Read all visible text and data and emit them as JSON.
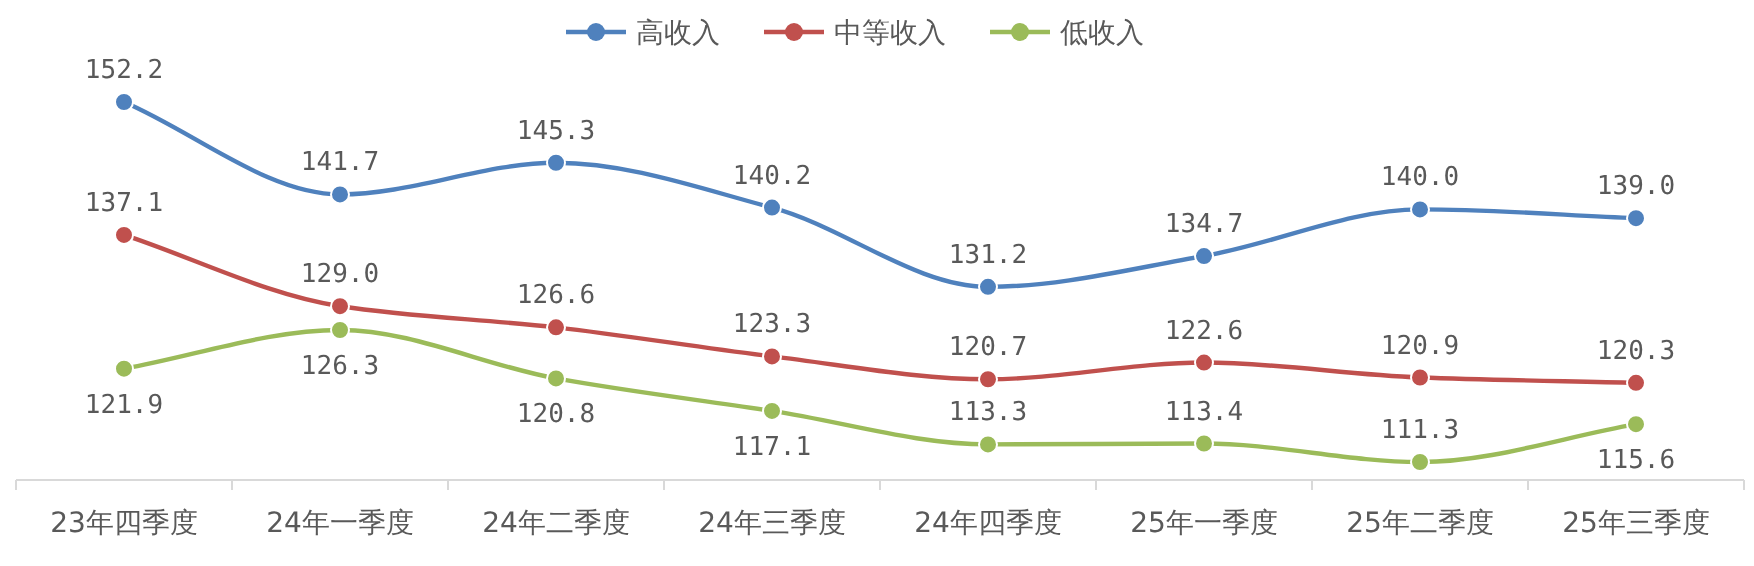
{
  "chart_data": {
    "type": "line",
    "categories": [
      "23年四季度",
      "24年一季度",
      "24年二季度",
      "24年三季度",
      "24年四季度",
      "25年一季度",
      "25年二季度",
      "25年三季度"
    ],
    "series": [
      {
        "name": "高收入",
        "color": "#4f81bd",
        "values": [
          152.2,
          141.7,
          145.3,
          140.2,
          131.2,
          134.7,
          140.0,
          139.0
        ],
        "value_labels": [
          "152.2",
          "141.7",
          "145.3",
          "140.2",
          "131.2",
          "134.7",
          "140.0",
          "139.0"
        ]
      },
      {
        "name": "中等收入",
        "color": "#c0504d",
        "values": [
          137.1,
          129.0,
          126.6,
          123.3,
          120.7,
          122.6,
          120.9,
          120.3
        ],
        "value_labels": [
          "137.1",
          "129.0",
          "126.6",
          "123.3",
          "120.7",
          "122.6",
          "120.9",
          "120.3"
        ]
      },
      {
        "name": "低收入",
        "color": "#9bbb59",
        "values": [
          121.9,
          126.3,
          120.8,
          117.1,
          113.3,
          113.4,
          111.3,
          115.6
        ],
        "value_labels": [
          "121.9",
          "126.3",
          "120.8",
          "117.1",
          "113.3",
          "113.4",
          "111.3",
          "115.6"
        ]
      }
    ],
    "legend": "top",
    "marker": "circle"
  }
}
